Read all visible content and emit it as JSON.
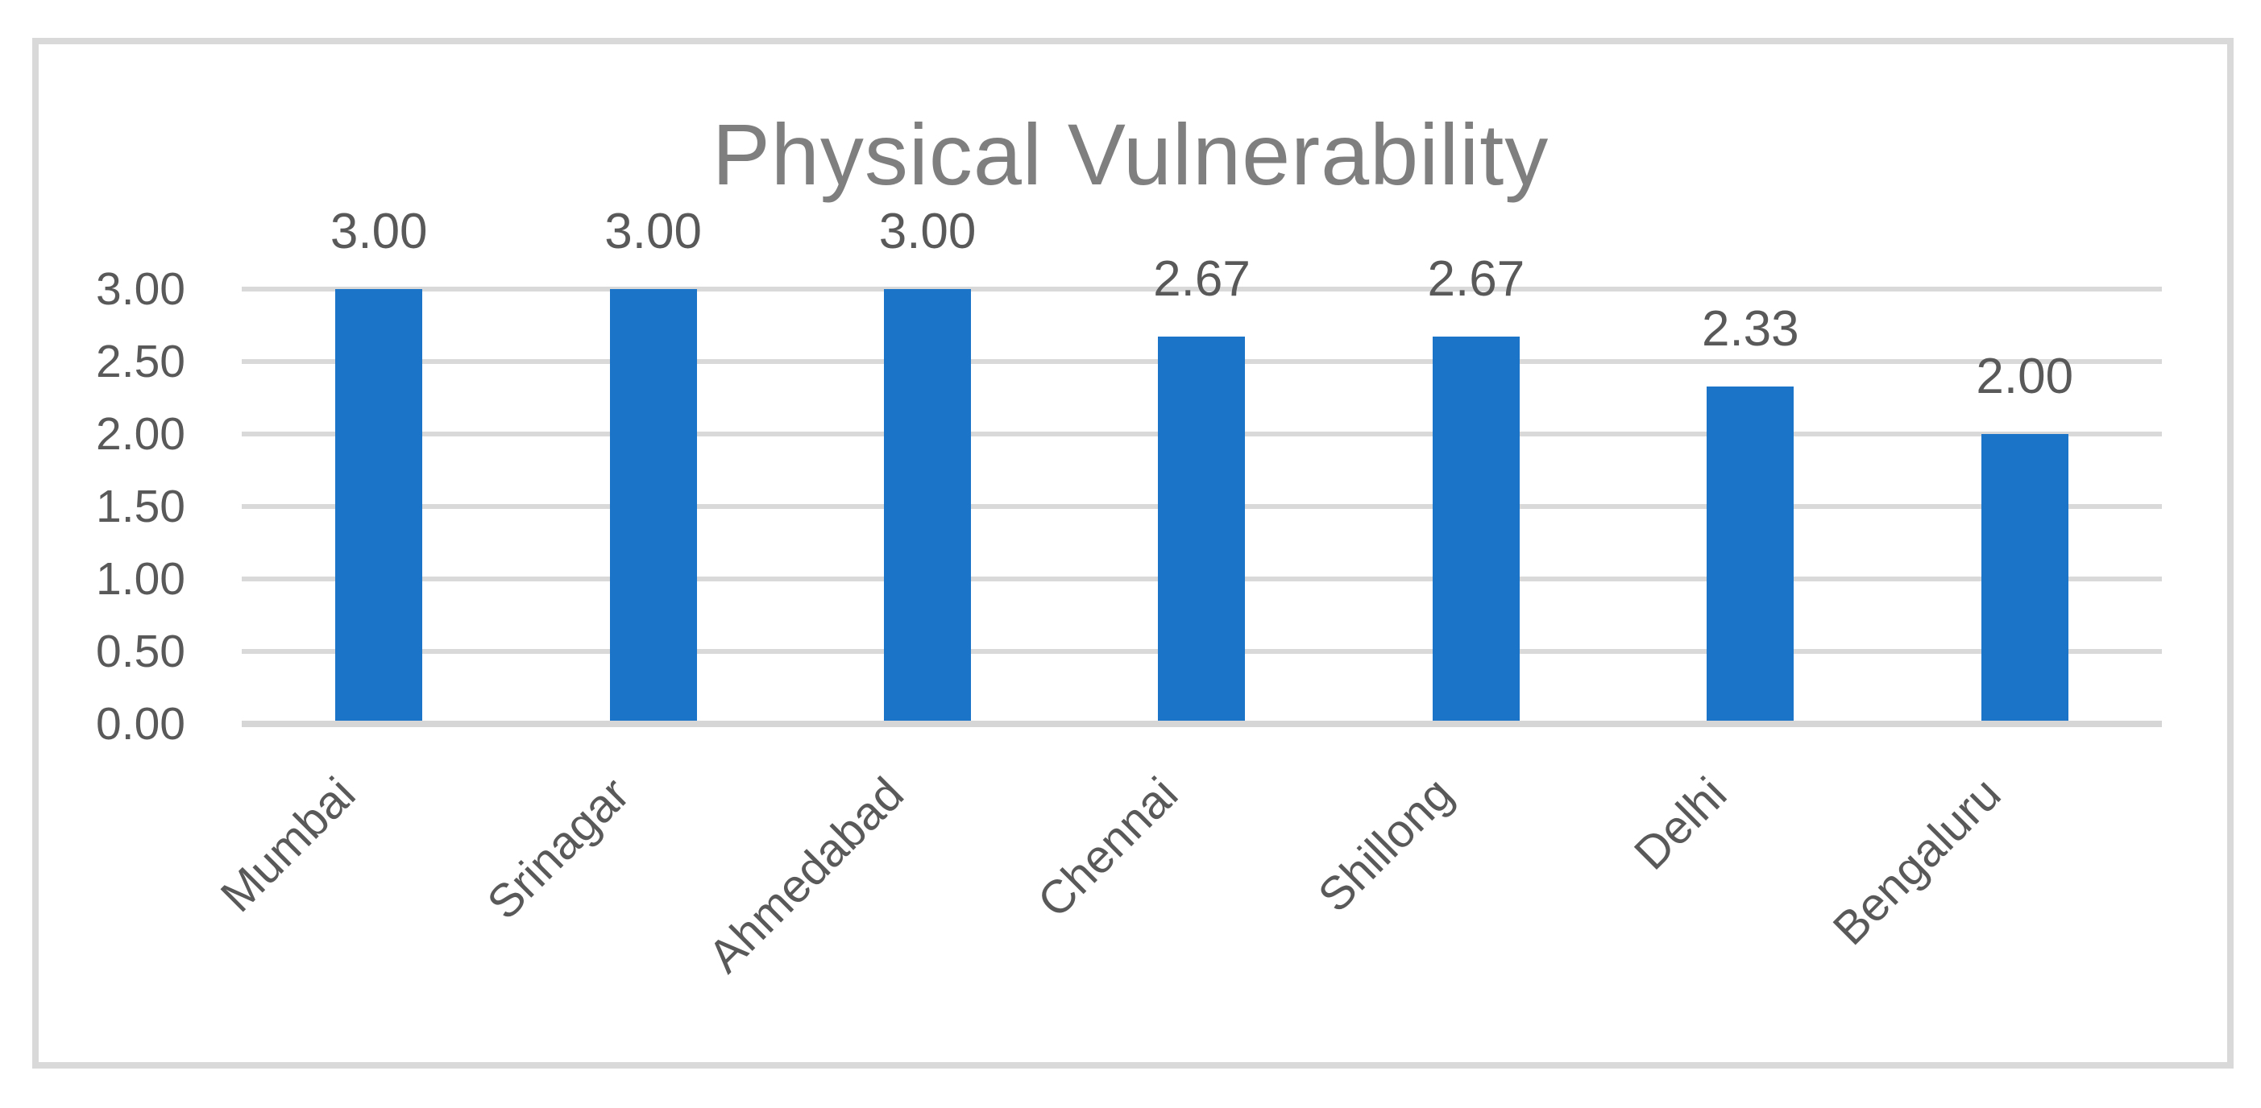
{
  "chart": {
    "bar_color": "#1B74C8",
    "gridline_color": "#D9D9D9",
    "axis_line_color": "#D6D6D6",
    "frame_border_color": "#D9D9D9",
    "title_color": "#7F7F7F",
    "label_color": "#595959"
  },
  "chart_data": {
    "type": "bar",
    "title": "Physical Vulnerability",
    "categories": [
      "Mumbai",
      "Srinagar",
      "Ahmedabad",
      "Chennai",
      "Shillong",
      "Delhi",
      "Bengaluru"
    ],
    "values": [
      3.0,
      3.0,
      3.0,
      2.67,
      2.67,
      2.33,
      2.0
    ],
    "data_labels": [
      "3.00",
      "3.00",
      "3.00",
      "2.67",
      "2.67",
      "2.33",
      "2.00"
    ],
    "xlabel": "",
    "ylabel": "",
    "ylim": [
      0,
      3
    ],
    "ytick_interval": 0.5,
    "yticks": [
      "0.00",
      "0.50",
      "1.00",
      "1.50",
      "2.00",
      "2.50",
      "3.00"
    ],
    "ytick_values": [
      0.0,
      0.5,
      1.0,
      1.5,
      2.0,
      2.5,
      3.0
    ],
    "grid": true,
    "legend": false,
    "data_label_position": "above_bar",
    "category_label_rotation_deg": 45
  }
}
